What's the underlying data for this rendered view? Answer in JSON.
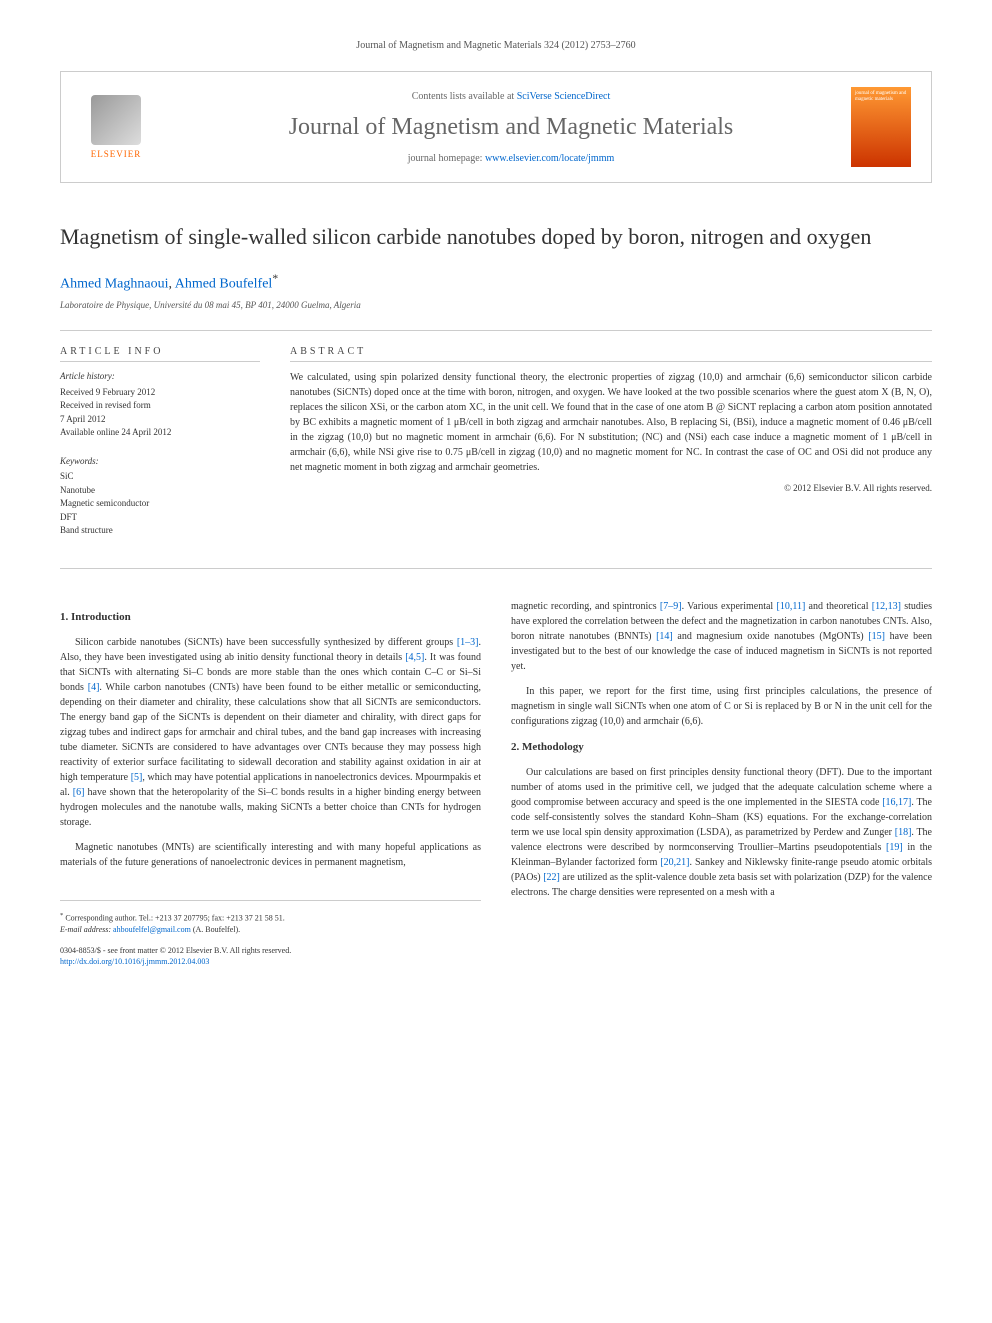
{
  "header": {
    "running_head": "Journal of Magnetism and Magnetic Materials 324 (2012) 2753–2760"
  },
  "journal_box": {
    "contents_prefix": "Contents lists available at ",
    "contents_link": "SciVerse ScienceDirect",
    "journal_name": "Journal of Magnetism and Magnetic Materials",
    "homepage_prefix": "journal homepage: ",
    "homepage_link": "www.elsevier.com/locate/jmmm",
    "elsevier_label": "ELSEVIER",
    "cover_text": "journal of magnetism and magnetic materials"
  },
  "article": {
    "title": "Magnetism of single-walled silicon carbide nanotubes doped by boron, nitrogen and oxygen",
    "authors": [
      {
        "name": "Ahmed Maghnaoui"
      },
      {
        "name": "Ahmed Boufelfel",
        "corresponding": true
      }
    ],
    "affiliation": "Laboratoire de Physique, Université du 08 mai 45, BP 401, 24000 Guelma, Algeria"
  },
  "info": {
    "heading": "ARTICLE INFO",
    "history_label": "Article history:",
    "history": [
      "Received 9 February 2012",
      "Received in revised form",
      "7 April 2012",
      "Available online 24 April 2012"
    ],
    "keywords_label": "Keywords:",
    "keywords": [
      "SiC",
      "Nanotube",
      "Magnetic semiconductor",
      "DFT",
      "Band structure"
    ]
  },
  "abstract": {
    "heading": "ABSTRACT",
    "text": "We calculated, using spin polarized density functional theory, the electronic properties of zigzag (10,0) and armchair (6,6) semiconductor silicon carbide nanotubes (SiCNTs) doped once at the time with boron, nitrogen, and oxygen. We have looked at the two possible scenarios where the guest atom X (B, N, O), replaces the silicon XSi, or the carbon atom XC, in the unit cell. We found that in the case of one atom B @ SiCNT replacing a carbon atom position annotated by BC exhibits a magnetic moment of 1 μB/cell in both zigzag and armchair nanotubes. Also, B replacing Si, (BSi), induce a magnetic moment of 0.46 μB/cell in the zigzag (10,0) but no magnetic moment in armchair (6,6). For N substitution; (NC) and (NSi) each case induce a magnetic moment of 1 μB/cell in armchair (6,6), while NSi give rise to 0.75 μB/cell in zigzag (10,0) and no magnetic moment for NC. In contrast the case of OC and OSi did not produce any net magnetic moment in both zigzag and armchair geometries.",
    "copyright": "© 2012 Elsevier B.V. All rights reserved."
  },
  "body": {
    "section1_heading": "1. Introduction",
    "section1_p1_a": "Silicon carbide nanotubes (SiCNTs) have been successfully synthesized by different groups ",
    "section1_p1_cite1": "[1–3]",
    "section1_p1_b": ". Also, they have been investigated using ab initio density functional theory in details ",
    "section1_p1_cite2": "[4,5]",
    "section1_p1_c": ". It was found that SiCNTs with alternating Si–C bonds are more stable than the ones which contain C–C or Si–Si bonds ",
    "section1_p1_cite3": "[4]",
    "section1_p1_d": ". While carbon nanotubes (CNTs) have been found to be either metallic or semiconducting, depending on their diameter and chirality, these calculations show that all SiCNTs are semiconductors. The energy band gap of the SiCNTs is dependent on their diameter and chirality, with direct gaps for zigzag tubes and indirect gaps for armchair and chiral tubes, and the band gap increases with increasing tube diameter. SiCNTs are considered to have advantages over CNTs because they may possess high reactivity of exterior surface facilitating to sidewall decoration and stability against oxidation in air at high temperature ",
    "section1_p1_cite4": "[5]",
    "section1_p1_e": ", which may have potential applications in nanoelectronics devices. Mpourmpakis et al. ",
    "section1_p1_cite5": "[6]",
    "section1_p1_f": " have shown that the heteropolarity of the Si–C bonds results in a higher binding energy between hydrogen molecules and the nanotube walls, making SiCNTs a better choice than CNTs for hydrogen storage.",
    "section1_p2_a": "Magnetic nanotubes (MNTs) are scientifically interesting and with many hopeful applications as materials of the future generations of nanoelectronic devices in permanent magnetism, ",
    "section1_p2_b": "magnetic recording, and spintronics ",
    "section1_p2_cite1": "[7–9]",
    "section1_p2_c": ". Various experimental ",
    "section1_p2_cite2": "[10,11]",
    "section1_p2_d": " and theoretical ",
    "section1_p2_cite3": "[12,13]",
    "section1_p2_e": " studies have explored the correlation between the defect and the magnetization in carbon nanotubes CNTs. Also, boron nitrate nanotubes (BNNTs) ",
    "section1_p2_cite4": "[14]",
    "section1_p2_f": " and magnesium oxide nanotubes (MgONTs) ",
    "section1_p2_cite5": "[15]",
    "section1_p2_g": " have been investigated but to the best of our knowledge the case of induced magnetism in SiCNTs is not reported yet.",
    "section1_p3": "In this paper, we report for the first time, using first principles calculations, the presence of magnetism in single wall SiCNTs when one atom of C or Si is replaced by B or N in the unit cell for the configurations zigzag (10,0) and armchair (6,6).",
    "section2_heading": "2. Methodology",
    "section2_p1_a": "Our calculations are based on first principles density functional theory (DFT). Due to the important number of atoms used in the primitive cell, we judged that the adequate calculation scheme where a good compromise between accuracy and speed is the one implemented in the SIESTA code ",
    "section2_p1_cite1": "[16,17]",
    "section2_p1_b": ". The code self-consistently solves the standard Kohn–Sham (KS) equations. For the exchange-correlation term we use local spin density approximation (LSDA), as parametrized by Perdew and Zunger ",
    "section2_p1_cite2": "[18]",
    "section2_p1_c": ". The valence electrons were described by normconserving Troullier–Martins pseudopotentials ",
    "section2_p1_cite3": "[19]",
    "section2_p1_d": " in the Kleinman–Bylander factorized form ",
    "section2_p1_cite4": "[20,21]",
    "section2_p1_e": ". Sankey and Niklewsky finite-range pseudo atomic orbitals (PAOs) ",
    "section2_p1_cite5": "[22]",
    "section2_p1_f": " are utilized as the split-valence double zeta basis set with polarization (DZP) for the valence electrons. The charge densities were represented on a mesh with a"
  },
  "footer": {
    "corresponding_marker": "*",
    "corresponding_text": "Corresponding author. Tel.: +213 37 207795; fax: +213 37 21 58 51.",
    "email_label": "E-mail address: ",
    "email": "ahboufelfel@gmail.com",
    "email_suffix": " (A. Boufelfel).",
    "issn_line": "0304-8853/$ - see front matter © 2012 Elsevier B.V. All rights reserved.",
    "doi_line": "http://dx.doi.org/10.1016/j.jmmm.2012.04.003"
  },
  "colors": {
    "link": "#0066cc",
    "orange": "#ff6600",
    "text": "#333333",
    "muted": "#666666",
    "border": "#cccccc"
  }
}
